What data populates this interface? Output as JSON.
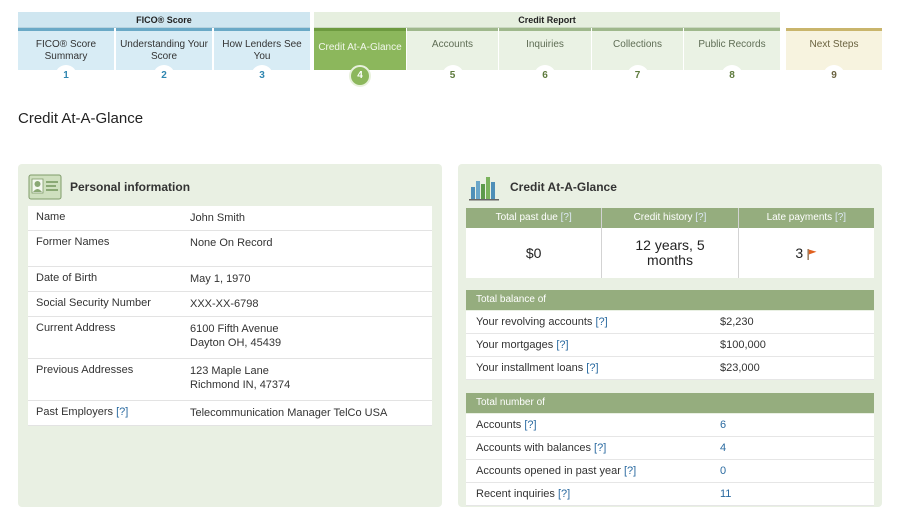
{
  "nav": {
    "group_fico": "FICO® Score",
    "group_credit": "Credit Report",
    "steps": [
      {
        "label": "FICO® Score Summary",
        "num": "1"
      },
      {
        "label": "Understanding Your Score",
        "num": "2"
      },
      {
        "label": "How Lenders See You",
        "num": "3"
      },
      {
        "label": "Credit At-A-Glance",
        "num": "4"
      },
      {
        "label": "Accounts",
        "num": "5"
      },
      {
        "label": "Inquiries",
        "num": "6"
      },
      {
        "label": "Collections",
        "num": "7"
      },
      {
        "label": "Public Records",
        "num": "8"
      },
      {
        "label": "Next Steps",
        "num": "9"
      }
    ],
    "active_step": "4"
  },
  "page_title": "Credit At-A-Glance",
  "personal": {
    "title": "Personal information",
    "rows": [
      {
        "label": "Name",
        "value": "John Smith"
      },
      {
        "label": "Former Names",
        "value": "None On Record"
      },
      {
        "label": "Date of Birth",
        "value": "May 1, 1970"
      },
      {
        "label": "Social Security Number",
        "value": "XXX-XX-6798"
      },
      {
        "label": "Current Address",
        "value": "6100 Fifth Avenue",
        "value2": "Dayton OH, 45439"
      },
      {
        "label": "Previous Addresses",
        "value": "123 Maple Lane",
        "value2": "Richmond IN, 47374"
      },
      {
        "label": "Past Employers",
        "help": "[?]",
        "value": "Telecommunication Manager TelCo USA"
      }
    ]
  },
  "glance": {
    "title": "Credit At-A-Glance",
    "help": "[?]",
    "summary": [
      {
        "label": "Total past due",
        "value": "$0"
      },
      {
        "label": "Credit history",
        "value": "12 years, 5 months"
      },
      {
        "label": "Late payments",
        "value": "3"
      }
    ],
    "balance_header": "Total balance of",
    "balance_rows": [
      {
        "label": "Your revolving accounts",
        "value": "$2,230"
      },
      {
        "label": "Your mortgages",
        "value": "$100,000"
      },
      {
        "label": "Your installment loans",
        "value": "$23,000"
      }
    ],
    "number_header": "Total number of",
    "number_rows": [
      {
        "label": "Accounts",
        "value": "6"
      },
      {
        "label": "Accounts with balances",
        "value": "4"
      },
      {
        "label": "Accounts opened in past year",
        "value": "0"
      },
      {
        "label": "Recent inquiries",
        "value": "11"
      }
    ]
  },
  "colors": {
    "accent_green": "#8cb75c",
    "fico_blue": "#d8ecf5",
    "link": "#2a6aa0"
  }
}
